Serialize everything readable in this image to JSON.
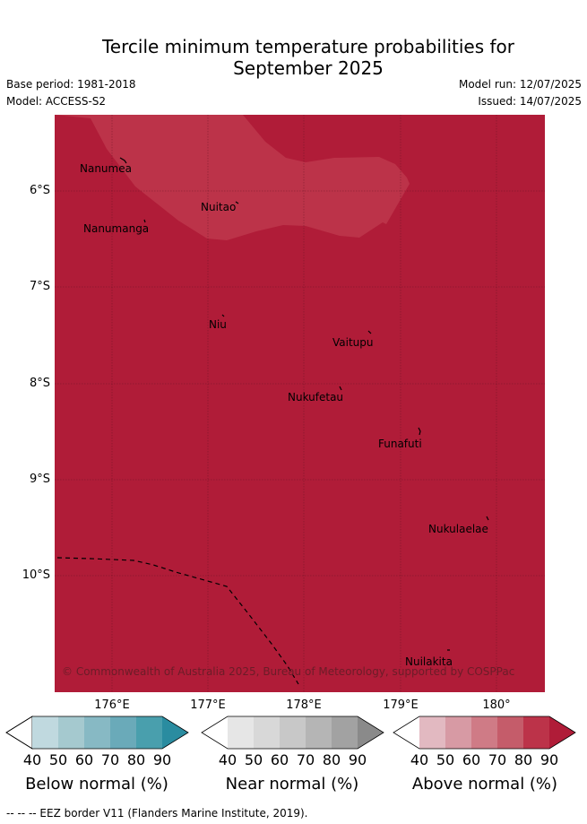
{
  "title": "Tercile minimum temperature probabilities for\nSeptember 2025",
  "base_period": "Base period: 1981-2018",
  "model": "Model: ACCESS-S2",
  "model_run": "Model run: 12/07/2025",
  "issued": "Issued: 14/07/2025",
  "map": {
    "lat_labels": [
      "6°S",
      "7°S",
      "8°S",
      "9°S",
      "10°S"
    ],
    "lon_labels": [
      "176°E",
      "177°E",
      "178°E",
      "179°E",
      "180°"
    ],
    "places": [
      "Nanumea",
      "Nuitao",
      "Nanumanga",
      "Niu",
      "Vaitupu",
      "Nukufetau",
      "Funafuti",
      "Nukulaelae",
      "Nuilakita"
    ],
    "credit": "© Commonwealth of Australia 2025, Bureau of Meteorology, supported by COSPPac",
    "colors": {
      "above_90": "#b01c38",
      "above_80": "#bc3349"
    }
  },
  "legend": {
    "ticks": [
      "40",
      "50",
      "60",
      "70",
      "80",
      "90"
    ],
    "below": {
      "label": "Below normal (%)",
      "colors": [
        "#ffffff",
        "#c0d9df",
        "#a5c9cf",
        "#87b9c4",
        "#6aaab9",
        "#499fad",
        "#2a8ca0"
      ]
    },
    "near": {
      "label": "Near normal (%)",
      "colors": [
        "#ffffff",
        "#e6e6e6",
        "#d8d8d8",
        "#c8c8c8",
        "#b5b5b5",
        "#a2a2a2",
        "#8a8a8a"
      ]
    },
    "above": {
      "label": "Above normal (%)",
      "colors": [
        "#ffffff",
        "#e2b9c1",
        "#d79aa4",
        "#cf7b86",
        "#c55c6a",
        "#bc3349",
        "#b01c38"
      ]
    }
  },
  "footer": "--  --  -- EEZ border V11 (Flanders Marine Institute, 2019)."
}
